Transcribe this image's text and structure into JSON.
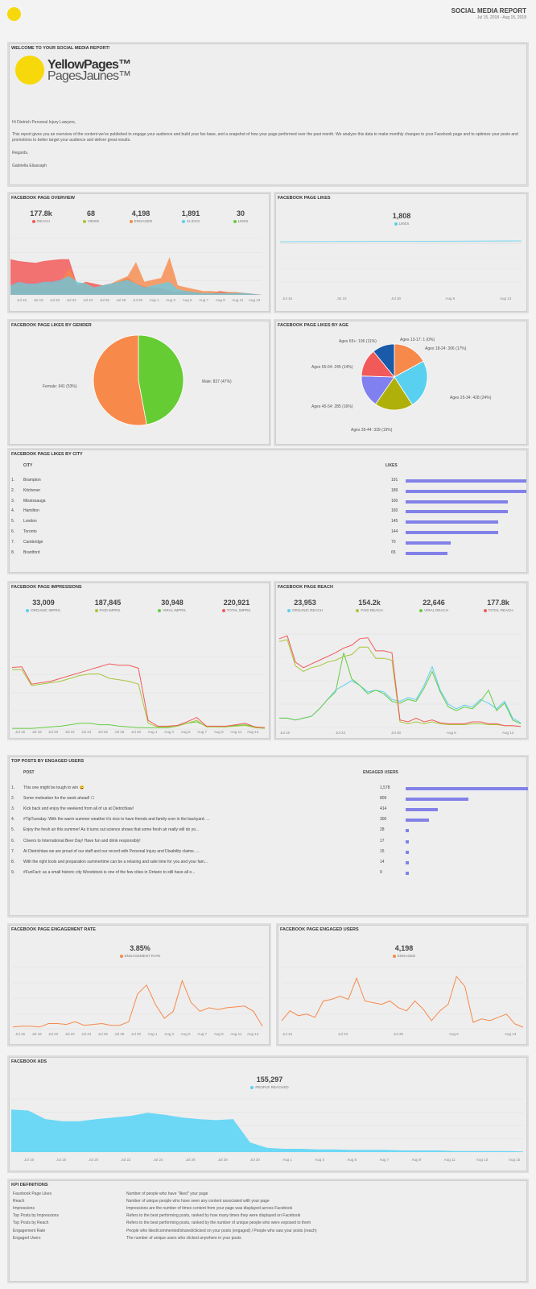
{
  "header": {
    "title": "SOCIAL MEDIA REPORT",
    "dates": "Jul 15, 2018 - Aug 15, 2018"
  },
  "welcome": {
    "title": "WELCOME TO YOUR SOCIAL MEDIA REPORT!",
    "logo_line1": "YellowPages™",
    "logo_line2": "PagesJaunes™",
    "greeting": "Hi Dietrich Personal Injury Lawyers,",
    "body": "This report gives you an overview of the content we've published to engage your audience and build your fan base, and a snapshot of how your page performed over the past month. We analyze this data to make monthly changes to your Facebook page and to optimize your posts and promotions to better target your audience and deliver great results.",
    "regards": "Regards,",
    "signer": "Gabriella Eliassaph"
  },
  "overview": {
    "title": "FACEBOOK PAGE OVERVIEW",
    "kpis": [
      {
        "value": "177.8k",
        "label": "REACH",
        "color": "#f25a5a"
      },
      {
        "value": "68",
        "label": "VIEWS",
        "color": "#a6c73a"
      },
      {
        "value": "4,198",
        "label": "ENGAGED",
        "color": "#f7894a"
      },
      {
        "value": "1,891",
        "label": "CLICKS",
        "color": "#5ad0f0"
      },
      {
        "value": "30",
        "label": "LIKES",
        "color": "#66cc44"
      }
    ],
    "xticks": [
      "Jul 16",
      "Jul 18",
      "Jul 20",
      "Jul 22",
      "Jul 24",
      "Jul 26",
      "Jul 28",
      "Jul 30",
      "Aug 1",
      "Aug 3",
      "Aug 5",
      "Aug 7",
      "Aug 9",
      "Aug 11",
      "Aug 13"
    ],
    "reach": [
      38,
      36,
      35,
      34,
      36,
      37,
      38,
      38,
      10,
      14,
      12,
      10,
      12,
      14,
      18,
      12,
      9,
      8,
      7,
      5,
      3,
      4,
      3,
      2,
      2,
      4,
      3,
      2,
      2,
      1,
      0
    ],
    "engaged": [
      10,
      12,
      10,
      11,
      13,
      12,
      14,
      28,
      12,
      13,
      8,
      10,
      12,
      16,
      20,
      35,
      14,
      16,
      18,
      40,
      10,
      8,
      6,
      4,
      4,
      3,
      3,
      3,
      2,
      1,
      0
    ],
    "clicks": [
      10,
      14,
      12,
      12,
      14,
      14,
      16,
      20,
      14,
      12,
      8,
      10,
      12,
      14,
      16,
      12,
      8,
      10,
      12,
      14,
      6,
      4,
      3,
      2,
      2,
      2,
      2,
      2,
      2,
      1,
      0
    ]
  },
  "likes": {
    "title": "FACEBOOK PAGE LIKES",
    "kpi": {
      "value": "1,808",
      "label": "LIKES",
      "color": "#5ad0f0"
    },
    "xticks": [
      "Jul 16",
      "Jul 23",
      "Jul 30",
      "Aug 6",
      "Aug 13"
    ]
  },
  "gender": {
    "title": "FACEBOOK PAGE LIKES BY GENDER",
    "slices": [
      {
        "label": "Male: 837 (47%)",
        "value": 837,
        "color": "#66cc33"
      },
      {
        "label": "Female: 941 (53%)",
        "value": 941,
        "color": "#f7894a"
      }
    ]
  },
  "age": {
    "title": "FACEBOOK PAGE LIKES BY AGE",
    "slices": [
      {
        "label": "Ages 13-17: 1 (0%)",
        "value": 1,
        "color": "#a6c73a"
      },
      {
        "label": "Ages 18-24: 306 (17%)",
        "value": 306,
        "color": "#f7894a"
      },
      {
        "label": "Ages 25-34: 428 (24%)",
        "value": 428,
        "color": "#5ad0f0"
      },
      {
        "label": "Ages 35-44: 339 (19%)",
        "value": 339,
        "color": "#b0b00a"
      },
      {
        "label": "Ages 45-54: 285 (16%)",
        "value": 285,
        "color": "#8080f0"
      },
      {
        "label": "Ages 55-64: 245 (14%)",
        "value": 245,
        "color": "#f25a5a"
      },
      {
        "label": "Ages 65+: 196 (11%)",
        "value": 196,
        "color": "#1a5aa8"
      }
    ]
  },
  "city": {
    "title": "FACEBOOK PAGE LIKES BY CITY",
    "col1": "CITY",
    "col2": "LIKES",
    "rows": [
      {
        "n": "1.",
        "name": "Brampton",
        "v": 191
      },
      {
        "n": "2.",
        "name": "Kitchener",
        "v": 189
      },
      {
        "n": "3.",
        "name": "Mississauga",
        "v": 160
      },
      {
        "n": "4.",
        "name": "Hamilton",
        "v": 160
      },
      {
        "n": "5.",
        "name": "London",
        "v": 145
      },
      {
        "n": "6.",
        "name": "Toronto",
        "v": 144
      },
      {
        "n": "7.",
        "name": "Cambridge",
        "v": 70
      },
      {
        "n": "8.",
        "name": "Brantford",
        "v": 65
      }
    ]
  },
  "impressions": {
    "title": "FACEBOOK PAGE IMPRESSIONS",
    "kpis": [
      {
        "value": "33,009",
        "label": "ORGANIC IMPRS.",
        "color": "#5ad0f0"
      },
      {
        "value": "187,845",
        "label": "PAID IMPRS.",
        "color": "#a6c73a"
      },
      {
        "value": "30,948",
        "label": "VIRAL IMPRS.",
        "color": "#66cc44"
      },
      {
        "value": "220,921",
        "label": "TOTAL IMPRS.",
        "color": "#f25a5a"
      }
    ],
    "xticks": [
      "Jul 16",
      "Jul 18",
      "Jul 20",
      "Jul 22",
      "Jul 24",
      "Jul 26",
      "Jul 28",
      "Jul 30",
      "Aug 1",
      "Aug 3",
      "Aug 5",
      "Aug 7",
      "Aug 9",
      "Aug 11",
      "Aug 13"
    ],
    "total": [
      85,
      86,
      62,
      64,
      66,
      70,
      74,
      78,
      82,
      86,
      90,
      88,
      88,
      84,
      12,
      4,
      4,
      5,
      10,
      16,
      4,
      4,
      4,
      6,
      8,
      3,
      2
    ],
    "paid": [
      82,
      82,
      60,
      62,
      64,
      66,
      70,
      74,
      76,
      76,
      70,
      68,
      66,
      62,
      8,
      3,
      3,
      4,
      8,
      12,
      3,
      3,
      3,
      4,
      5,
      2,
      1
    ],
    "viral": [
      1,
      1,
      1,
      2,
      3,
      4,
      6,
      8,
      8,
      6,
      6,
      4,
      3,
      2,
      2,
      2,
      2,
      4,
      8,
      10,
      4,
      3,
      3,
      5,
      6,
      3,
      2
    ]
  },
  "reach": {
    "title": "FACEBOOK PAGE REACH",
    "kpis": [
      {
        "value": "23,953",
        "label": "ORGANIC REACH",
        "color": "#5ad0f0"
      },
      {
        "value": "154.2k",
        "label": "PAID REACH",
        "color": "#a6c73a"
      },
      {
        "value": "22,646",
        "label": "VIRAL REACH",
        "color": "#66cc44"
      },
      {
        "value": "177.8k",
        "label": "TOTAL REACH",
        "color": "#f25a5a"
      }
    ],
    "xticks": [
      "Jul 16",
      "Jul 23",
      "Jul 30",
      "Aug 6",
      "Aug 13"
    ],
    "total": [
      95,
      98,
      70,
      64,
      68,
      72,
      76,
      80,
      85,
      88,
      95,
      96,
      82,
      82,
      80,
      8,
      6,
      10,
      6,
      8,
      5,
      4,
      4,
      4,
      6,
      6,
      4,
      4,
      2,
      2,
      1
    ],
    "paid": [
      92,
      94,
      66,
      60,
      64,
      66,
      70,
      72,
      76,
      78,
      86,
      86,
      74,
      74,
      72,
      6,
      4,
      6,
      4,
      6,
      4,
      3,
      3,
      3,
      4,
      4,
      3,
      3,
      2,
      2,
      1
    ],
    "organic": [
      10,
      10,
      8,
      10,
      12,
      20,
      30,
      40,
      45,
      50,
      45,
      38,
      40,
      38,
      30,
      28,
      32,
      30,
      45,
      65,
      40,
      25,
      20,
      24,
      22,
      30,
      26,
      20,
      28,
      10,
      5
    ],
    "viral": [
      10,
      10,
      8,
      10,
      12,
      20,
      30,
      38,
      80,
      52,
      45,
      36,
      40,
      36,
      28,
      26,
      30,
      28,
      42,
      60,
      38,
      22,
      18,
      22,
      20,
      28,
      40,
      18,
      26,
      8,
      4
    ]
  },
  "posts": {
    "title": "TOP POSTS BY ENGAGED USERS",
    "col1": "POST",
    "col2": "ENGAGED USERS",
    "rows": [
      {
        "n": "1.",
        "text": "This one might be tough to win 😄",
        "v": "1,578",
        "num": 1578
      },
      {
        "n": "2.",
        "text": "Some motivation for the week ahead! ☐",
        "v": "809",
        "num": 809
      },
      {
        "n": "3.",
        "text": "Kick back and enjoy the weekend from all of us at Dietrichlaw!",
        "v": "414",
        "num": 414
      },
      {
        "n": "4.",
        "text": "#TipTuesday: With the warm summer weather it's nice to have friends and family over in the backyard. ...",
        "v": "300",
        "num": 300
      },
      {
        "n": "5.",
        "text": "Enjoy the fresh air this summer! As it turns out science shows that some fresh air really will do yo...",
        "v": "28",
        "num": 28
      },
      {
        "n": "6.",
        "text": "Cheers to International Beer Day! Have fun and drink responsibly!",
        "v": "17",
        "num": 17
      },
      {
        "n": "7.",
        "text": "At Dietrichlaw we are proud of our staff and our record with Personal Injury and Disability claims. ...",
        "v": "15",
        "num": 15
      },
      {
        "n": "8.",
        "text": "With the right tools and preparation summertime can be a relaxing and safe time for you and your fam...",
        "v": "14",
        "num": 14
      },
      {
        "n": "9.",
        "text": "#FunFact: as a small historic city Woodstock is one of the few cities in Ontario to still have all o...",
        "v": "9",
        "num": 9
      }
    ]
  },
  "engagement_rate": {
    "title": "FACEBOOK PAGE ENGAGEMENT RATE",
    "kpi": {
      "value": "3.85%",
      "label": "ENGAGEMENT RATE",
      "color": "#f7894a"
    },
    "xticks": [
      "Jul 16",
      "Jul 18",
      "Jul 20",
      "Jul 22",
      "Jul 24",
      "Jul 26",
      "Jul 28",
      "Jul 30",
      "Aug 1",
      "Aug 3",
      "Aug 5",
      "Aug 7",
      "Aug 9",
      "Aug 11",
      "Aug 13"
    ],
    "values": [
      2,
      3,
      3,
      2,
      6,
      6,
      5,
      8,
      4,
      5,
      6,
      4,
      4,
      8,
      40,
      50,
      28,
      12,
      20,
      55,
      30,
      20,
      24,
      22,
      24,
      25,
      26,
      20,
      3
    ]
  },
  "engaged_users": {
    "title": "FACEBOOK PAGE ENGAGED USERS",
    "kpi": {
      "value": "4,198",
      "label": "ENGAGED",
      "color": "#f7894a"
    },
    "xticks": [
      "Jul 16",
      "Jul 23",
      "Jul 30",
      "Aug 6",
      "Aug 13"
    ],
    "values": [
      10,
      22,
      16,
      18,
      14,
      34,
      36,
      40,
      36,
      62,
      34,
      32,
      30,
      34,
      26,
      22,
      34,
      24,
      10,
      22,
      30,
      64,
      52,
      8,
      12,
      10,
      14,
      18,
      6,
      2
    ]
  },
  "ads": {
    "title": "FACEBOOK ADS",
    "kpi": {
      "value": "155,297",
      "label": "PEOPLE REACHED",
      "color": "#5ad0f0"
    },
    "xticks": [
      "Jul 16",
      "Jul 18",
      "Jul 20",
      "Jul 22",
      "Jul 24",
      "Jul 26",
      "Jul 28",
      "Jul 30",
      "Aug 1",
      "Aug 3",
      "Aug 5",
      "Aug 7",
      "Aug 9",
      "Aug 11",
      "Aug 13",
      "Aug 15"
    ],
    "values": [
      80,
      78,
      62,
      58,
      58,
      62,
      65,
      68,
      74,
      70,
      65,
      62,
      60,
      62,
      18,
      8,
      6,
      6,
      5,
      5,
      4,
      4,
      4,
      3,
      3,
      3,
      2,
      2,
      2,
      2,
      1
    ]
  },
  "kpi_defs": {
    "title": "KPI DEFINITIONS",
    "rows": [
      {
        "k": "Facebook Page Likes",
        "d": "Number of people who have \"liked\" your page"
      },
      {
        "k": "Reach",
        "d": "Number of unique people who have seen any content associated with your page"
      },
      {
        "k": "Impressions",
        "d": "Impressions are the number of times content from your page was displayed across Facebook"
      },
      {
        "k": "Top Posts by Impressions",
        "d": "Refers to the best performing posts, ranked by how many times they were displayed on Facebook"
      },
      {
        "k": "Top Posts by Reach",
        "d": "Refers to the best performing posts, ranked by the number of unique people who were exposed to them"
      },
      {
        "k": "Engagement Rate",
        "d": "People who liked/commented/shared/clicked on your posts (engaged) / People who saw your posts (reach)"
      },
      {
        "k": "Engaged Users",
        "d": "The number of unique users who clicked anywhere in your posts"
      }
    ]
  }
}
